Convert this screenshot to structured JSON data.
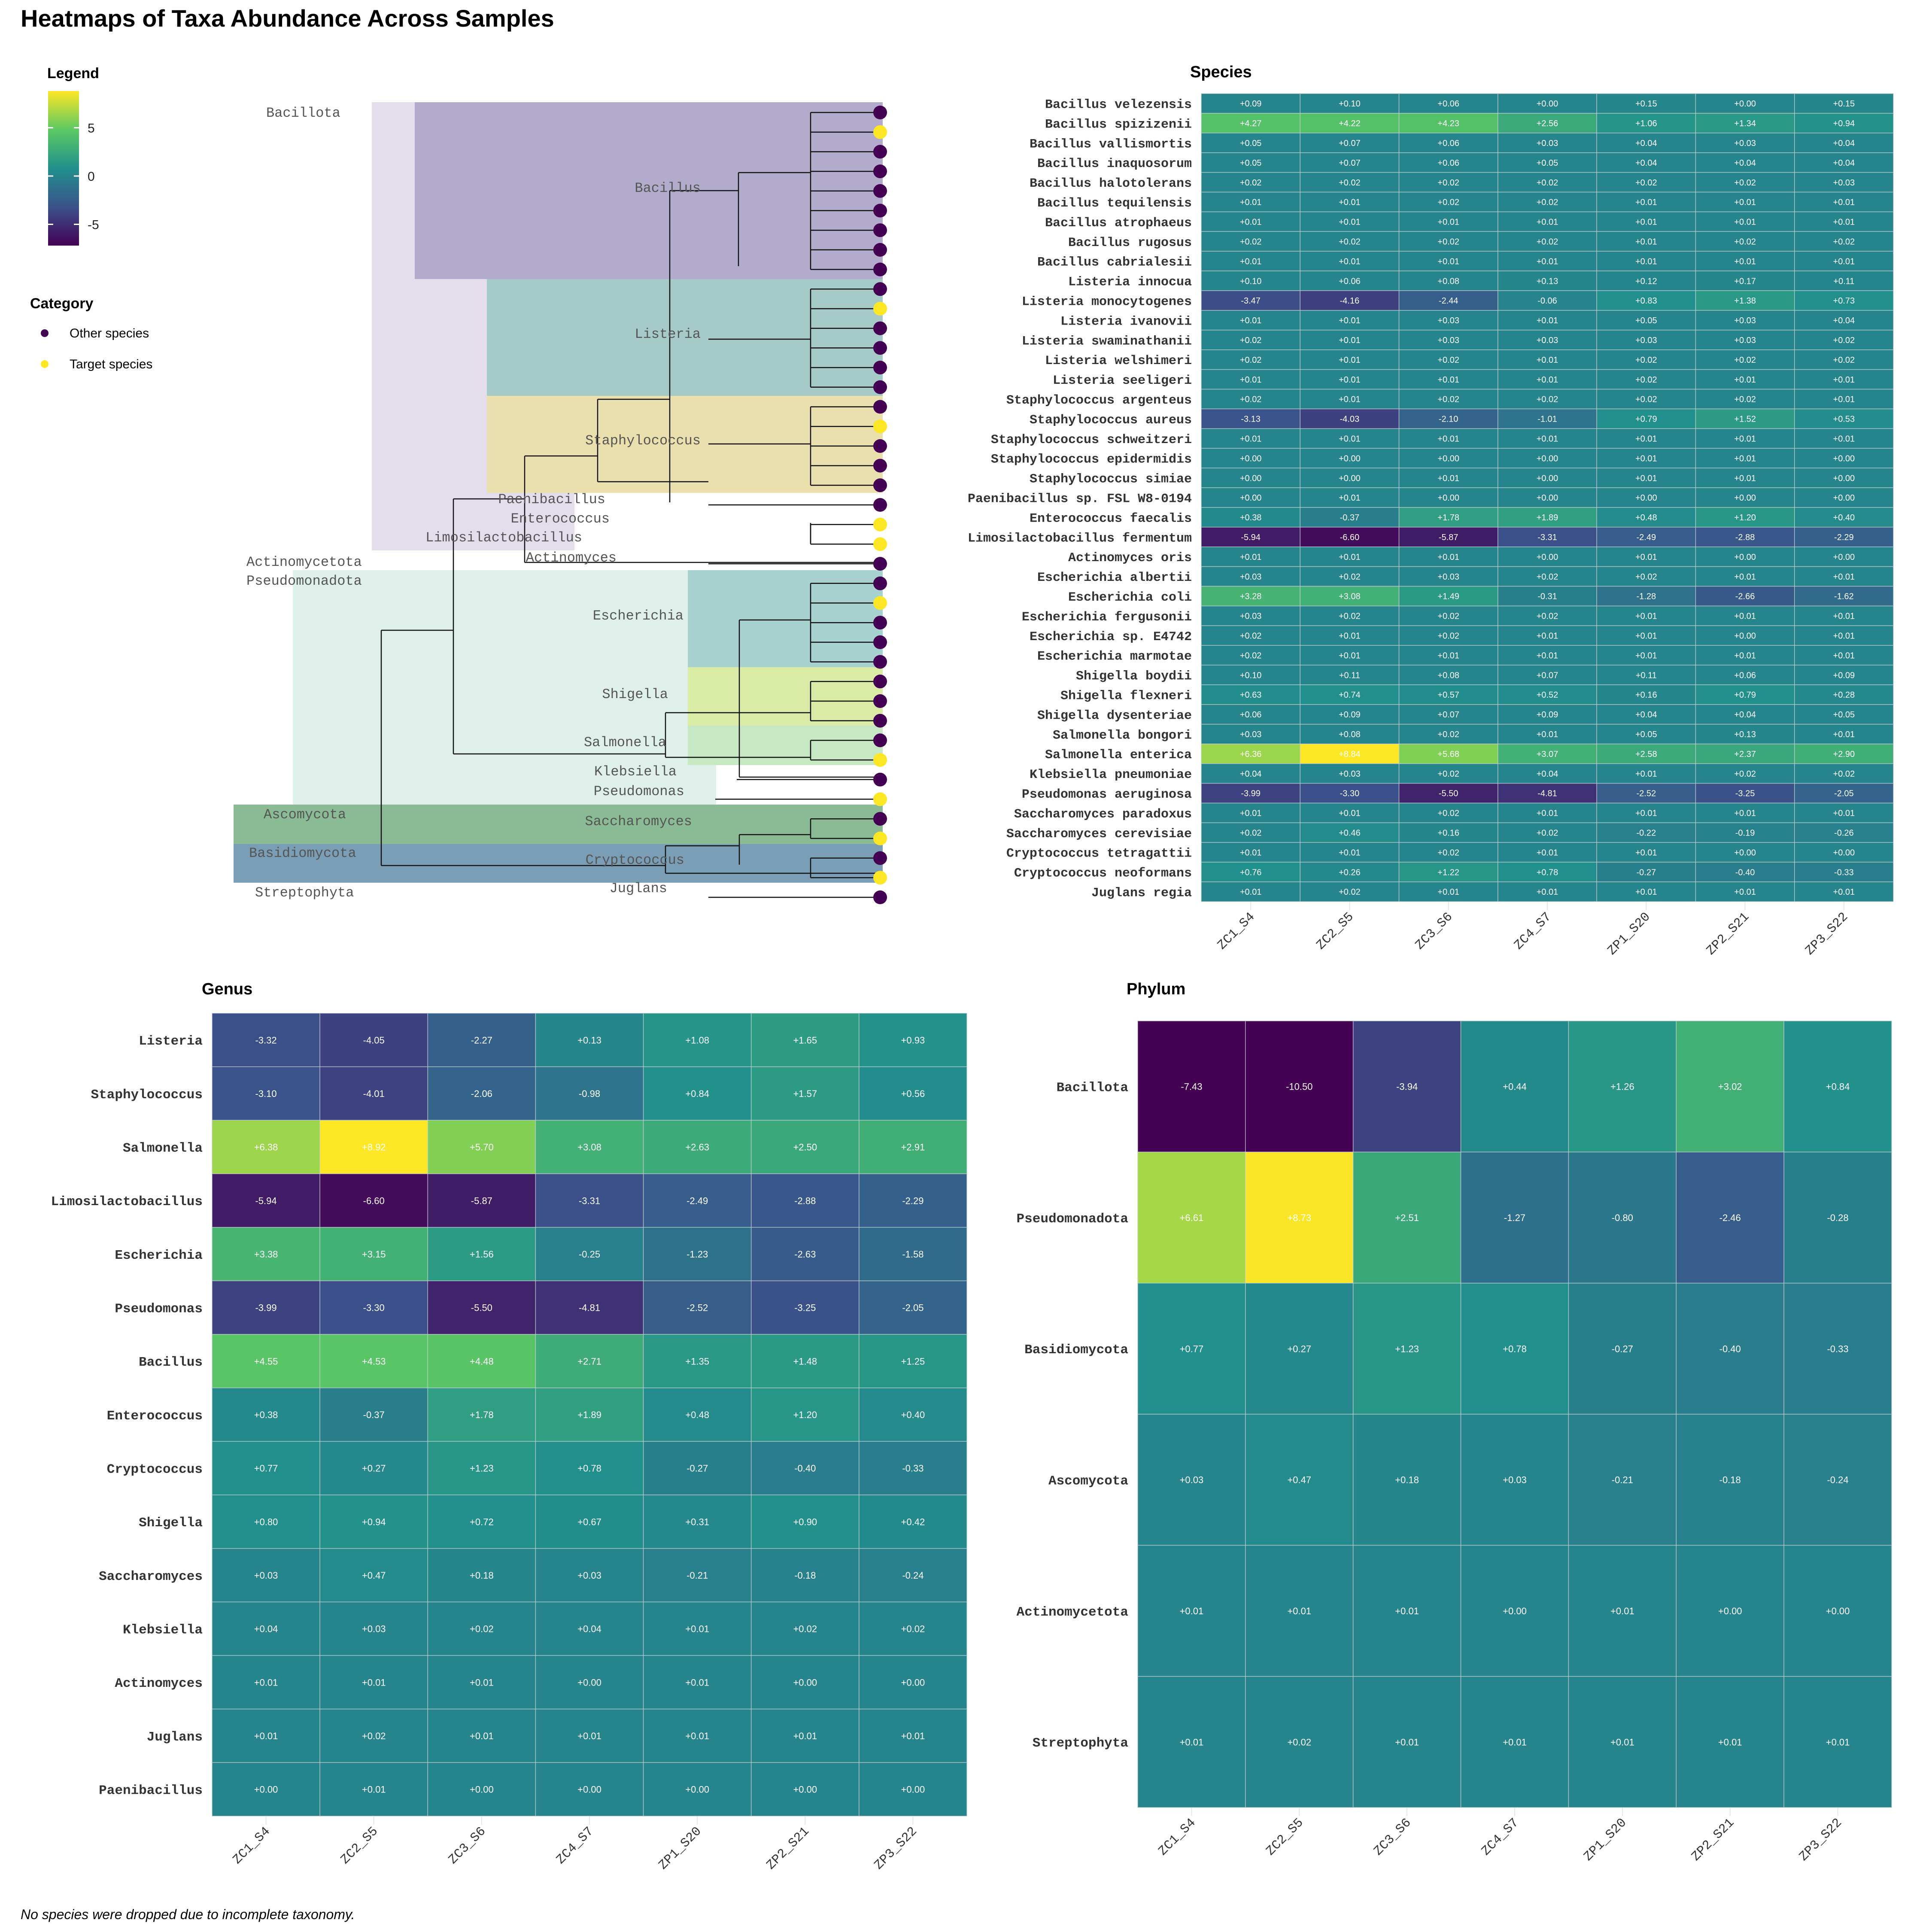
{
  "title": "Heatmaps of Taxa Abundance Across Samples",
  "footnote": "No species were dropped due to incomplete taxonomy.",
  "legend": {
    "title": "Legend",
    "ticks": [
      "5",
      "0",
      "-5"
    ],
    "tick_values": [
      5,
      0,
      -5
    ],
    "range": [
      -7.2,
      8.8
    ],
    "category_title": "Category",
    "categories": [
      {
        "label": "Other species",
        "color": "#440154"
      },
      {
        "label": "Target species",
        "color": "#FDE725"
      }
    ]
  },
  "colors": {
    "low": "#440154",
    "high": "#FDE725",
    "scale": "viridis"
  },
  "samples": [
    "ZC1_S4",
    "ZC2_S5",
    "ZC3_S6",
    "ZC4_S7",
    "ZP1_S20",
    "ZP2_S21",
    "ZP3_S22"
  ],
  "tree": {
    "phyla": [
      {
        "label": "Bacillota",
        "color": "#E4DDEB",
        "rows": [
          0,
          23
        ]
      },
      {
        "label": "Actinomycetota",
        "color": "#FFFFFF",
        "rows": [
          24,
          24
        ]
      },
      {
        "label": "Pseudomonadota",
        "color": "#DFF0EA",
        "rows": [
          25,
          36
        ]
      },
      {
        "label": "Ascomycota",
        "color": "#8BBB95",
        "rows": [
          37,
          38
        ]
      },
      {
        "label": "Basidiomycota",
        "color": "#7A9EB5",
        "rows": [
          39,
          40
        ]
      },
      {
        "label": "Streptophyta",
        "color": "#FFFFFF",
        "rows": [
          41,
          41
        ]
      }
    ],
    "genera": [
      {
        "label": "Bacillus",
        "color": "#B2ABCB",
        "rows": [
          0,
          8
        ]
      },
      {
        "label": "Listeria",
        "color": "#A6CAC8",
        "rows": [
          9,
          14
        ]
      },
      {
        "label": "Staphylococcus",
        "color": "#EAE0AE",
        "rows": [
          15,
          19
        ]
      },
      {
        "label": "Paenibacillus",
        "color": "",
        "rows": [
          20,
          20
        ]
      },
      {
        "label": "Enterococcus",
        "color": "",
        "rows": [
          21,
          21
        ]
      },
      {
        "label": "Limosilactobacillus",
        "color": "",
        "rows": [
          22,
          22
        ]
      },
      {
        "label": "Actinomyces",
        "color": "",
        "rows": [
          23,
          23
        ]
      },
      {
        "label": "Escherichia",
        "color": "#A7D2CF",
        "rows": [
          24,
          28
        ]
      },
      {
        "label": "Shigella",
        "color": "#D9EBA5",
        "rows": [
          29,
          31
        ]
      },
      {
        "label": "Salmonella",
        "color": "#C6E8C2",
        "rows": [
          32,
          33
        ]
      },
      {
        "label": "Klebsiella",
        "color": "",
        "rows": [
          34,
          34
        ]
      },
      {
        "label": "Pseudomonas",
        "color": "",
        "rows": [
          35,
          35
        ]
      },
      {
        "label": "Saccharomyces",
        "color": "",
        "rows": [
          36,
          37
        ]
      },
      {
        "label": "Cryptococcus",
        "color": "",
        "rows": [
          38,
          39
        ]
      },
      {
        "label": "Juglans",
        "color": "",
        "rows": [
          40,
          40
        ]
      }
    ],
    "tip_categories": [
      "Other species",
      "Target species",
      "Other species",
      "Other species",
      "Other species",
      "Other species",
      "Other species",
      "Other species",
      "Other species",
      "Other species",
      "Target species",
      "Other species",
      "Other species",
      "Other species",
      "Other species",
      "Other species",
      "Target species",
      "Other species",
      "Other species",
      "Other species",
      "Other species",
      "Target species",
      "Target species",
      "Other species",
      "Other species",
      "Target species",
      "Other species",
      "Other species",
      "Other species",
      "Other species",
      "Other species",
      "Other species",
      "Other species",
      "Target species",
      "Other species",
      "Target species",
      "Other species",
      "Target species",
      "Other species",
      "Target species",
      "Other species"
    ]
  },
  "chart_data": [
    {
      "type": "heatmap",
      "title": "Species",
      "x": [
        "ZC1_S4",
        "ZC2_S5",
        "ZC3_S6",
        "ZC4_S7",
        "ZP1_S20",
        "ZP2_S21",
        "ZP3_S22"
      ],
      "y": [
        "Bacillus velezensis",
        "Bacillus spizizenii",
        "Bacillus vallismortis",
        "Bacillus inaquosorum",
        "Bacillus halotolerans",
        "Bacillus tequilensis",
        "Bacillus atrophaeus",
        "Bacillus rugosus",
        "Bacillus cabrialesii",
        "Listeria innocua",
        "Listeria monocytogenes",
        "Listeria ivanovii",
        "Listeria swaminathanii",
        "Listeria welshimeri",
        "Listeria seeligeri",
        "Staphylococcus argenteus",
        "Staphylococcus aureus",
        "Staphylococcus schweitzeri",
        "Staphylococcus epidermidis",
        "Staphylococcus simiae",
        "Paenibacillus sp. FSL W8-0194",
        "Enterococcus faecalis",
        "Limosilactobacillus fermentum",
        "Actinomyces oris",
        "Escherichia albertii",
        "Escherichia coli",
        "Escherichia fergusonii",
        "Escherichia sp. E4742",
        "Escherichia marmotae",
        "Shigella boydii",
        "Shigella flexneri",
        "Shigella dysenteriae",
        "Salmonella bongori",
        "Salmonella enterica",
        "Klebsiella pneumoniae",
        "Pseudomonas aeruginosa",
        "Saccharomyces paradoxus",
        "Saccharomyces cerevisiae",
        "Cryptococcus tetragattii",
        "Cryptococcus neoformans",
        "Juglans regia"
      ],
      "values": [
        [
          0.09,
          0.1,
          0.06,
          0.0,
          0.15,
          0.0,
          0.15
        ],
        [
          4.27,
          4.22,
          4.23,
          2.56,
          1.06,
          1.34,
          0.94
        ],
        [
          0.05,
          0.07,
          0.06,
          0.03,
          0.04,
          0.03,
          0.04
        ],
        [
          0.05,
          0.07,
          0.06,
          0.05,
          0.04,
          0.04,
          0.04
        ],
        [
          0.02,
          0.02,
          0.02,
          0.02,
          0.02,
          0.02,
          0.03
        ],
        [
          0.01,
          0.01,
          0.02,
          0.02,
          0.01,
          0.01,
          0.01
        ],
        [
          0.01,
          0.01,
          0.01,
          0.01,
          0.01,
          0.01,
          0.01
        ],
        [
          0.02,
          0.02,
          0.02,
          0.02,
          0.01,
          0.02,
          0.02
        ],
        [
          0.01,
          0.01,
          0.01,
          0.01,
          0.01,
          0.01,
          0.01
        ],
        [
          0.1,
          0.06,
          0.08,
          0.13,
          0.12,
          0.17,
          0.11
        ],
        [
          -3.47,
          -4.16,
          -2.44,
          -0.06,
          0.83,
          1.38,
          0.73
        ],
        [
          0.01,
          0.01,
          0.03,
          0.01,
          0.05,
          0.03,
          0.04
        ],
        [
          0.02,
          0.01,
          0.03,
          0.03,
          0.03,
          0.03,
          0.02
        ],
        [
          0.02,
          0.01,
          0.02,
          0.01,
          0.02,
          0.02,
          0.02
        ],
        [
          0.01,
          0.01,
          0.01,
          0.01,
          0.02,
          0.01,
          0.01
        ],
        [
          0.02,
          0.01,
          0.02,
          0.02,
          0.02,
          0.02,
          0.01
        ],
        [
          -3.13,
          -4.03,
          -2.1,
          -1.01,
          0.79,
          1.52,
          0.53
        ],
        [
          0.01,
          0.01,
          0.01,
          0.01,
          0.01,
          0.01,
          0.01
        ],
        [
          0.0,
          0.0,
          0.0,
          0.0,
          0.01,
          0.01,
          0.0
        ],
        [
          0.0,
          0.0,
          0.01,
          0.0,
          0.01,
          0.01,
          0.0
        ],
        [
          0.0,
          0.01,
          0.0,
          0.0,
          0.0,
          0.0,
          0.0
        ],
        [
          0.38,
          -0.37,
          1.78,
          1.89,
          0.48,
          1.2,
          0.4
        ],
        [
          -5.94,
          -6.6,
          -5.87,
          -3.31,
          -2.49,
          -2.88,
          -2.29
        ],
        [
          0.01,
          0.01,
          0.01,
          0.0,
          0.01,
          0.0,
          0.0
        ],
        [
          0.03,
          0.02,
          0.03,
          0.02,
          0.02,
          0.01,
          0.01
        ],
        [
          3.28,
          3.08,
          1.49,
          -0.31,
          -1.28,
          -2.66,
          -1.62
        ],
        [
          0.03,
          0.02,
          0.02,
          0.02,
          0.01,
          0.01,
          0.01
        ],
        [
          0.02,
          0.01,
          0.02,
          0.01,
          0.01,
          0.0,
          0.01
        ],
        [
          0.02,
          0.01,
          0.01,
          0.01,
          0.01,
          0.01,
          0.01
        ],
        [
          0.1,
          0.11,
          0.08,
          0.07,
          0.11,
          0.06,
          0.09
        ],
        [
          0.63,
          0.74,
          0.57,
          0.52,
          0.16,
          0.79,
          0.28
        ],
        [
          0.06,
          0.09,
          0.07,
          0.09,
          0.04,
          0.04,
          0.05
        ],
        [
          0.03,
          0.08,
          0.02,
          0.01,
          0.05,
          0.13,
          0.01
        ],
        [
          6.36,
          8.84,
          5.68,
          3.07,
          2.58,
          2.37,
          2.9
        ],
        [
          0.04,
          0.03,
          0.02,
          0.04,
          0.01,
          0.02,
          0.02
        ],
        [
          -3.99,
          -3.3,
          -5.5,
          -4.81,
          -2.52,
          -3.25,
          -2.05
        ],
        [
          0.01,
          0.01,
          0.02,
          0.01,
          0.01,
          0.01,
          0.01
        ],
        [
          0.02,
          0.46,
          0.16,
          0.02,
          -0.22,
          -0.19,
          -0.26
        ],
        [
          0.01,
          0.01,
          0.02,
          0.01,
          0.01,
          0.0,
          0.0
        ],
        [
          0.76,
          0.26,
          1.22,
          0.78,
          -0.27,
          -0.4,
          -0.33
        ],
        [
          0.01,
          0.02,
          0.01,
          0.01,
          0.01,
          0.01,
          0.01
        ]
      ]
    },
    {
      "type": "heatmap",
      "title": "Genus",
      "x": [
        "ZC1_S4",
        "ZC2_S5",
        "ZC3_S6",
        "ZC4_S7",
        "ZP1_S20",
        "ZP2_S21",
        "ZP3_S22"
      ],
      "y": [
        "Listeria",
        "Staphylococcus",
        "Salmonella",
        "Limosilactobacillus",
        "Escherichia",
        "Pseudomonas",
        "Bacillus",
        "Enterococcus",
        "Cryptococcus",
        "Shigella",
        "Saccharomyces",
        "Klebsiella",
        "Actinomyces",
        "Juglans",
        "Paenibacillus"
      ],
      "values": [
        [
          -3.32,
          -4.05,
          -2.27,
          0.13,
          1.08,
          1.65,
          0.93
        ],
        [
          -3.1,
          -4.01,
          -2.06,
          -0.98,
          0.84,
          1.57,
          0.56
        ],
        [
          6.38,
          8.92,
          5.7,
          3.08,
          2.63,
          2.5,
          2.91
        ],
        [
          -5.94,
          -6.6,
          -5.87,
          -3.31,
          -2.49,
          -2.88,
          -2.29
        ],
        [
          3.38,
          3.15,
          1.56,
          -0.25,
          -1.23,
          -2.63,
          -1.58
        ],
        [
          -3.99,
          -3.3,
          -5.5,
          -4.81,
          -2.52,
          -3.25,
          -2.05
        ],
        [
          4.55,
          4.53,
          4.48,
          2.71,
          1.35,
          1.48,
          1.25
        ],
        [
          0.38,
          -0.37,
          1.78,
          1.89,
          0.48,
          1.2,
          0.4
        ],
        [
          0.77,
          0.27,
          1.23,
          0.78,
          -0.27,
          -0.4,
          -0.33
        ],
        [
          0.8,
          0.94,
          0.72,
          0.67,
          0.31,
          0.9,
          0.42
        ],
        [
          0.03,
          0.47,
          0.18,
          0.03,
          -0.21,
          -0.18,
          -0.24
        ],
        [
          0.04,
          0.03,
          0.02,
          0.04,
          0.01,
          0.02,
          0.02
        ],
        [
          0.01,
          0.01,
          0.01,
          0.0,
          0.01,
          0.0,
          0.0
        ],
        [
          0.01,
          0.02,
          0.01,
          0.01,
          0.01,
          0.01,
          0.01
        ],
        [
          0.0,
          0.01,
          0.0,
          0.0,
          0.0,
          0.0,
          0.0
        ]
      ]
    },
    {
      "type": "heatmap",
      "title": "Phylum",
      "x": [
        "ZC1_S4",
        "ZC2_S5",
        "ZC3_S6",
        "ZC4_S7",
        "ZP1_S20",
        "ZP2_S21",
        "ZP3_S22"
      ],
      "y": [
        "Bacillota",
        "Pseudomonadota",
        "Basidiomycota",
        "Ascomycota",
        "Actinomycetota",
        "Streptophyta"
      ],
      "values": [
        [
          -7.43,
          -10.5,
          -3.94,
          0.44,
          1.26,
          3.02,
          0.84
        ],
        [
          6.61,
          8.73,
          2.51,
          -1.27,
          -0.8,
          -2.46,
          -0.28
        ],
        [
          0.77,
          0.27,
          1.23,
          0.78,
          -0.27,
          -0.4,
          -0.33
        ],
        [
          0.03,
          0.47,
          0.18,
          0.03,
          -0.21,
          -0.18,
          -0.24
        ],
        [
          0.01,
          0.01,
          0.01,
          0.0,
          0.01,
          0.0,
          0.0
        ],
        [
          0.01,
          0.02,
          0.01,
          0.01,
          0.01,
          0.01,
          0.01
        ]
      ]
    }
  ]
}
